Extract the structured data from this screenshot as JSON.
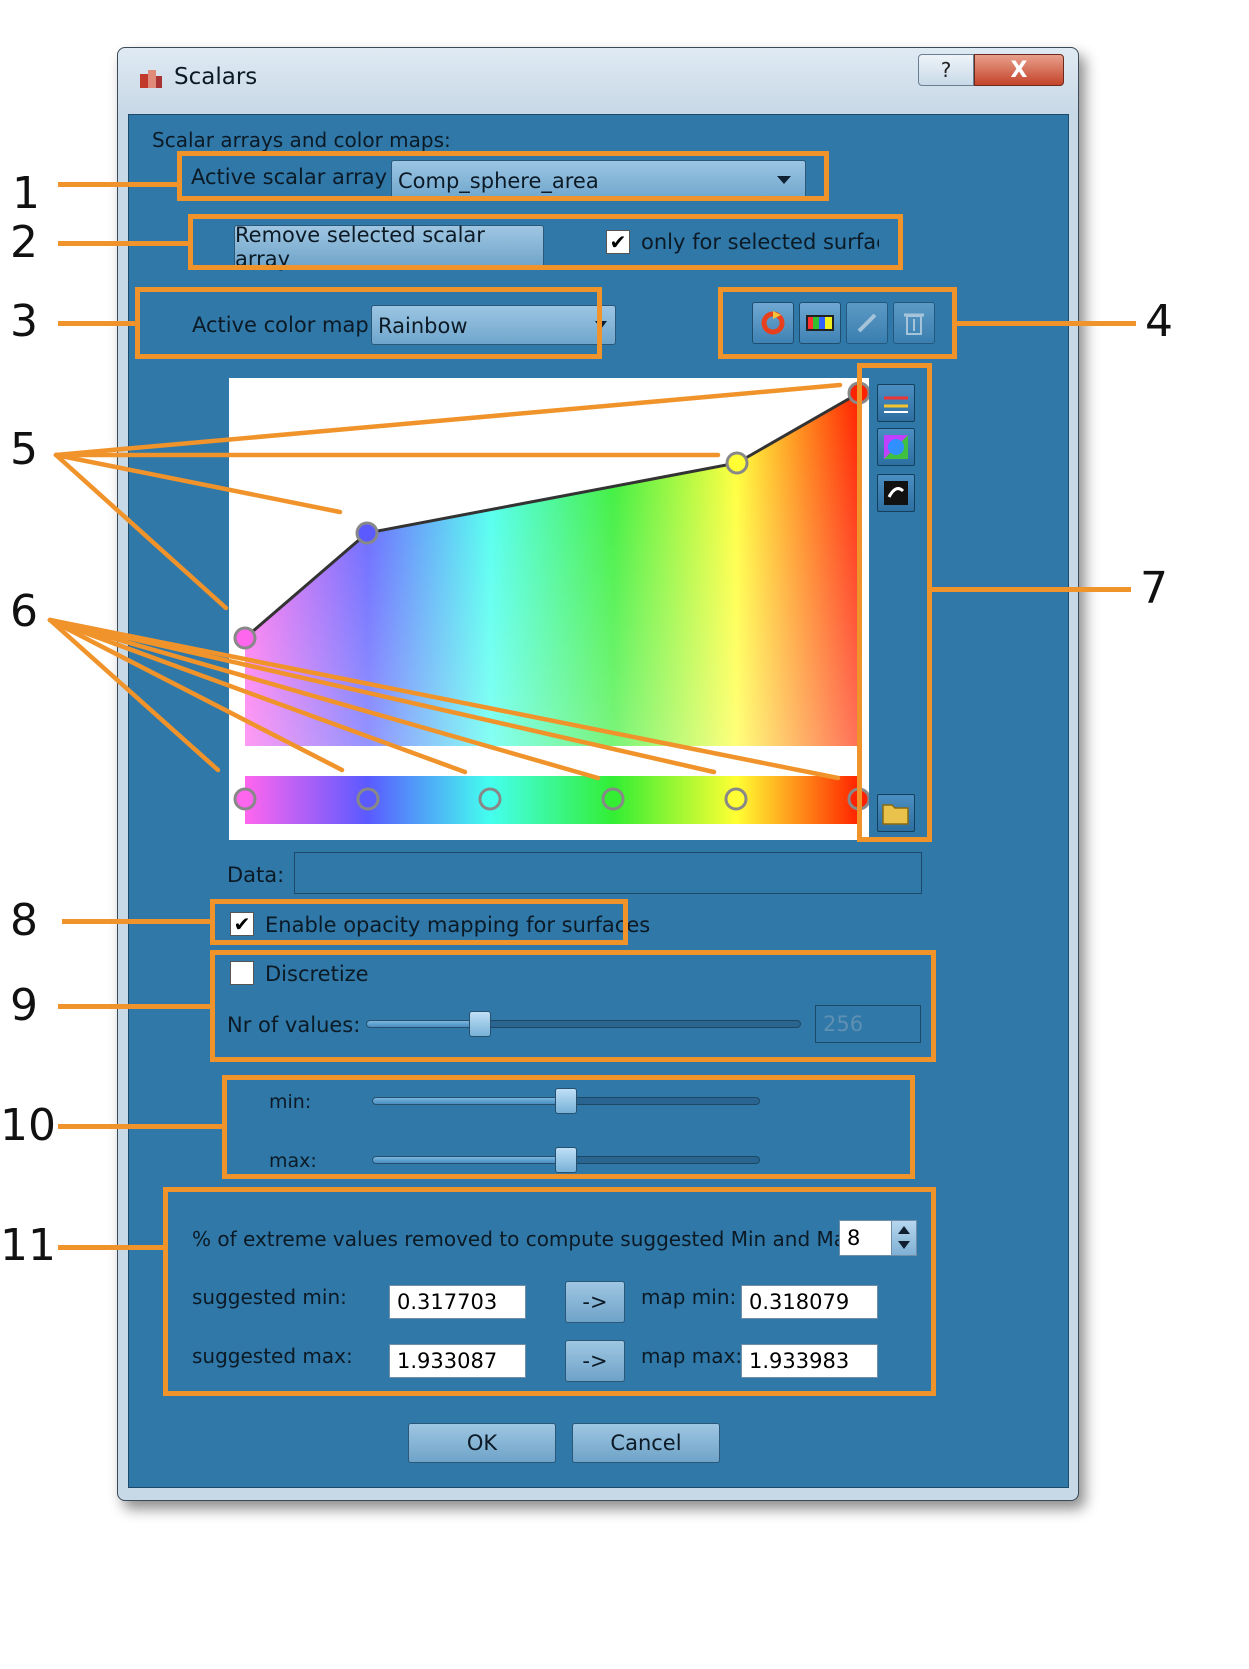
{
  "window": {
    "title": "Scalars",
    "help_label": "?",
    "close_label": "X"
  },
  "group_title": "Scalar arrays and color maps:",
  "active_scalar_array": {
    "label": "Active scalar array",
    "value": "Comp_sphere_area"
  },
  "remove_button": "Remove selected scalar array",
  "only_selected": {
    "label": "only for selected surfaces",
    "checked": true
  },
  "active_color_map": {
    "label": "Active color map",
    "value": "Rainbow"
  },
  "colormap_tools": [
    "refresh-icon",
    "color-map-icon",
    "edit-icon",
    "delete-icon"
  ],
  "side_tools": [
    "spread-icon",
    "color-wheel-icon",
    "invert-icon",
    "folder-icon"
  ],
  "color_stops": [
    "#ff66ee",
    "#5a5aff",
    "#44ffee",
    "#33ee33",
    "#ffff33",
    "#ff2200"
  ],
  "data": {
    "label": "Data:",
    "value": ""
  },
  "opacity": {
    "label": "Enable opacity mapping for surfaces",
    "checked": true
  },
  "discretize": {
    "label": "Discretize",
    "checked": false,
    "nr_label": "Nr of values:",
    "nr_value": "256"
  },
  "range": {
    "min_label": "min:",
    "max_label": "max:"
  },
  "extremes": {
    "label": "% of extreme values removed to compute suggested Min and Max",
    "value": "8",
    "suggested_min_label": "suggested min:",
    "suggested_min": "0.317703",
    "suggested_max_label": "suggested max:",
    "suggested_max": "1.933087",
    "arrow_label": "->",
    "map_min_label": "map min:",
    "map_min": "0.318079",
    "map_max_label": "map max:",
    "map_max": "1.933983"
  },
  "ok_label": "OK",
  "cancel_label": "Cancel",
  "annotations": [
    "1",
    "2",
    "3",
    "4",
    "5",
    "6",
    "7",
    "8",
    "9",
    "10",
    "11"
  ]
}
